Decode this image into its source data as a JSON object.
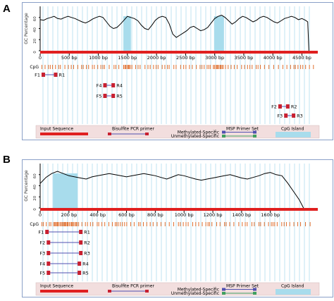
{
  "panels": [
    {
      "letter": "A",
      "ylabel": "GC Percentage",
      "yticks": [
        "0",
        "20",
        "40",
        "60"
      ],
      "xaxis_max": 4700,
      "xticks": [
        {
          "v": 0,
          "label": "0"
        },
        {
          "v": 500,
          "label": "500 bp"
        },
        {
          "v": 1000,
          "label": "1000 bp"
        },
        {
          "v": 1500,
          "label": "1500 bp"
        },
        {
          "v": 2000,
          "label": "2000 bp"
        },
        {
          "v": 2500,
          "label": "2500 bp"
        },
        {
          "v": 3000,
          "label": "3000 bp"
        },
        {
          "v": 3500,
          "label": "3500 bp"
        },
        {
          "v": 4000,
          "label": "4000 bp"
        },
        {
          "v": 4500,
          "label": "4500 bp"
        }
      ],
      "cpg_label": "CpG",
      "cpg_islands": [
        [
          1430,
          1560
        ],
        [
          2990,
          3160
        ]
      ],
      "gc_profile": [
        [
          0,
          56
        ],
        [
          60,
          55
        ],
        [
          120,
          58
        ],
        [
          180,
          60
        ],
        [
          240,
          62
        ],
        [
          300,
          58
        ],
        [
          360,
          57
        ],
        [
          420,
          60
        ],
        [
          480,
          62
        ],
        [
          540,
          60
        ],
        [
          600,
          58
        ],
        [
          660,
          55
        ],
        [
          720,
          52
        ],
        [
          780,
          50
        ],
        [
          840,
          53
        ],
        [
          900,
          57
        ],
        [
          960,
          60
        ],
        [
          1020,
          62
        ],
        [
          1080,
          60
        ],
        [
          1140,
          52
        ],
        [
          1200,
          44
        ],
        [
          1260,
          40
        ],
        [
          1320,
          42
        ],
        [
          1380,
          48
        ],
        [
          1440,
          55
        ],
        [
          1500,
          62
        ],
        [
          1560,
          60
        ],
        [
          1620,
          58
        ],
        [
          1680,
          54
        ],
        [
          1740,
          46
        ],
        [
          1800,
          40
        ],
        [
          1860,
          38
        ],
        [
          1920,
          46
        ],
        [
          1980,
          55
        ],
        [
          2040,
          60
        ],
        [
          2100,
          62
        ],
        [
          2160,
          60
        ],
        [
          2220,
          48
        ],
        [
          2280,
          30
        ],
        [
          2340,
          24
        ],
        [
          2400,
          28
        ],
        [
          2460,
          32
        ],
        [
          2520,
          36
        ],
        [
          2580,
          42
        ],
        [
          2640,
          44
        ],
        [
          2700,
          40
        ],
        [
          2760,
          36
        ],
        [
          2820,
          38
        ],
        [
          2880,
          42
        ],
        [
          2940,
          50
        ],
        [
          3000,
          58
        ],
        [
          3060,
          62
        ],
        [
          3120,
          64
        ],
        [
          3180,
          60
        ],
        [
          3240,
          54
        ],
        [
          3300,
          48
        ],
        [
          3360,
          52
        ],
        [
          3420,
          58
        ],
        [
          3480,
          62
        ],
        [
          3540,
          60
        ],
        [
          3600,
          56
        ],
        [
          3660,
          52
        ],
        [
          3720,
          55
        ],
        [
          3780,
          60
        ],
        [
          3840,
          62
        ],
        [
          3900,
          60
        ],
        [
          3960,
          56
        ],
        [
          4020,
          52
        ],
        [
          4080,
          50
        ],
        [
          4140,
          54
        ],
        [
          4200,
          58
        ],
        [
          4260,
          60
        ],
        [
          4320,
          62
        ],
        [
          4380,
          60
        ],
        [
          4440,
          56
        ],
        [
          4500,
          58
        ],
        [
          4560,
          55
        ],
        [
          4600,
          52
        ],
        [
          4620,
          0
        ]
      ],
      "primer_sets": [
        {
          "f": "F1",
          "r": "R1",
          "start": 60,
          "end": 260,
          "row": 0
        },
        {
          "f": "F4",
          "r": "R4",
          "start": 1120,
          "end": 1250,
          "row": 1
        },
        {
          "f": "F5",
          "r": "R5",
          "start": 1120,
          "end": 1250,
          "row": 2
        },
        {
          "f": "F2",
          "r": "R2",
          "start": 4130,
          "end": 4250,
          "row": 3
        },
        {
          "f": "F3",
          "r": "R3",
          "start": 4230,
          "end": 4350,
          "row": 4
        }
      ]
    },
    {
      "letter": "B",
      "ylabel": "GC Percentage",
      "yticks": [
        "0",
        "20",
        "40",
        "60"
      ],
      "xaxis_max": 1900,
      "xticks": [
        {
          "v": 0,
          "label": "0"
        },
        {
          "v": 200,
          "label": "200 bp"
        },
        {
          "v": 400,
          "label": "400 bp"
        },
        {
          "v": 600,
          "label": "600 bp"
        },
        {
          "v": 800,
          "label": "800 bp"
        },
        {
          "v": 1000,
          "label": "1000 bp"
        },
        {
          "v": 1200,
          "label": "1200 bp"
        },
        {
          "v": 1400,
          "label": "1400 bp"
        },
        {
          "v": 1600,
          "label": "1600 bp"
        }
      ],
      "cpg_label": "CpG",
      "cpg_islands": [
        [
          90,
          260
        ]
      ],
      "gc_profile": [
        [
          0,
          44
        ],
        [
          40,
          55
        ],
        [
          80,
          62
        ],
        [
          120,
          66
        ],
        [
          160,
          62
        ],
        [
          200,
          58
        ],
        [
          240,
          56
        ],
        [
          280,
          54
        ],
        [
          320,
          52
        ],
        [
          360,
          56
        ],
        [
          400,
          58
        ],
        [
          440,
          60
        ],
        [
          480,
          62
        ],
        [
          520,
          60
        ],
        [
          560,
          58
        ],
        [
          600,
          56
        ],
        [
          640,
          58
        ],
        [
          680,
          60
        ],
        [
          720,
          62
        ],
        [
          760,
          60
        ],
        [
          800,
          58
        ],
        [
          840,
          55
        ],
        [
          880,
          52
        ],
        [
          920,
          56
        ],
        [
          960,
          60
        ],
        [
          1000,
          58
        ],
        [
          1040,
          55
        ],
        [
          1080,
          52
        ],
        [
          1120,
          50
        ],
        [
          1160,
          52
        ],
        [
          1200,
          54
        ],
        [
          1240,
          56
        ],
        [
          1280,
          58
        ],
        [
          1320,
          60
        ],
        [
          1360,
          57
        ],
        [
          1400,
          54
        ],
        [
          1440,
          52
        ],
        [
          1480,
          55
        ],
        [
          1520,
          58
        ],
        [
          1560,
          62
        ],
        [
          1600,
          64
        ],
        [
          1640,
          60
        ],
        [
          1680,
          58
        ],
        [
          1720,
          45
        ],
        [
          1760,
          30
        ],
        [
          1800,
          15
        ],
        [
          1820,
          5
        ],
        [
          1830,
          0
        ]
      ],
      "primer_sets": [
        {
          "f": "F1",
          "r": "R1",
          "start": 50,
          "end": 280,
          "row": 0
        },
        {
          "f": "F2",
          "r": "R2",
          "start": 60,
          "end": 280,
          "row": 1
        },
        {
          "f": "F3",
          "r": "R3",
          "start": 60,
          "end": 280,
          "row": 2
        },
        {
          "f": "F4",
          "r": "R4",
          "start": 60,
          "end": 270,
          "row": 3
        },
        {
          "f": "F5",
          "r": "R5",
          "start": 60,
          "end": 270,
          "row": 4
        }
      ]
    }
  ],
  "legend": {
    "input_sequence": "Input Sequence",
    "bisulfite_pcr_primer": "Bisulfite PCR primer",
    "msp_primer_set": "MSP Primer Set",
    "methylated_specific": "Methylated-Specific",
    "unmethylated_specific": "Unmethylated-Specific",
    "cpg_island": "CpG Island"
  },
  "colors": {
    "border": "#8aa0c8",
    "grid": "#bfe3f0",
    "cpg_tick": "#e07030",
    "sequence_bar": "#e02020",
    "island_fill": "#a8dcec",
    "primer_red": "#c82030",
    "primer_blue": "#5050b0",
    "msp_green": "#40a060",
    "legend_bg": "#f2dede",
    "curve": "#000000"
  }
}
